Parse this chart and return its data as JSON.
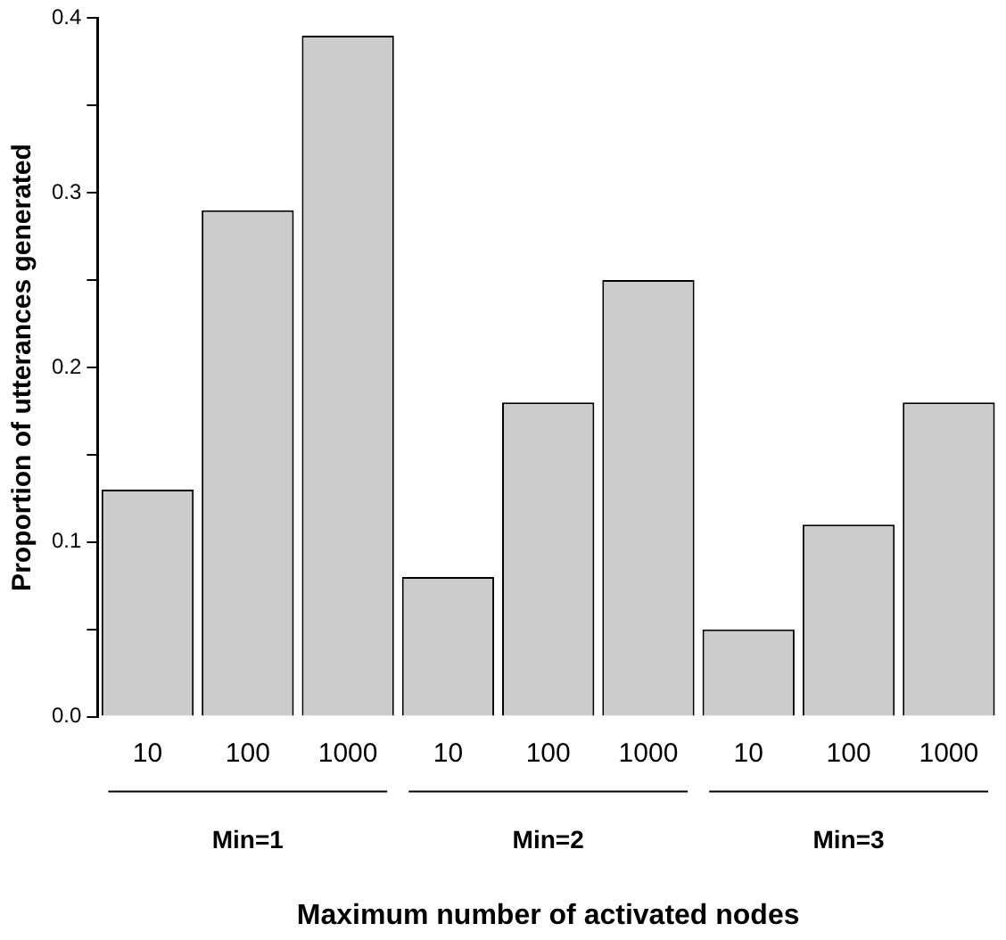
{
  "chart_data": {
    "type": "bar",
    "xlabel": "Maximum number of activated nodes",
    "ylabel": "Proportion of utterances generated",
    "categories": [
      "10",
      "100",
      "1000",
      "10",
      "100",
      "1000",
      "10",
      "100",
      "1000"
    ],
    "values": [
      0.13,
      0.29,
      0.39,
      0.08,
      0.18,
      0.25,
      0.05,
      0.11,
      0.18
    ],
    "color": "#cccccc",
    "ylim": [
      0,
      0.4
    ],
    "yticks": [
      {
        "value": 0,
        "label": "0.0"
      },
      {
        "value": 0.05,
        "label": null
      },
      {
        "value": 0.1,
        "label": "0.1"
      },
      {
        "value": 0.15,
        "label": null
      },
      {
        "value": 0.2,
        "label": "0.2"
      },
      {
        "value": 0.25,
        "label": null
      },
      {
        "value": 0.3,
        "label": "0.3"
      },
      {
        "value": 0.35,
        "label": null
      },
      {
        "value": 0.4,
        "label": "0.4"
      }
    ],
    "annotations": [
      "Min=1",
      "Min=2",
      "Min=3"
    ],
    "grid": false,
    "legend": false
  }
}
